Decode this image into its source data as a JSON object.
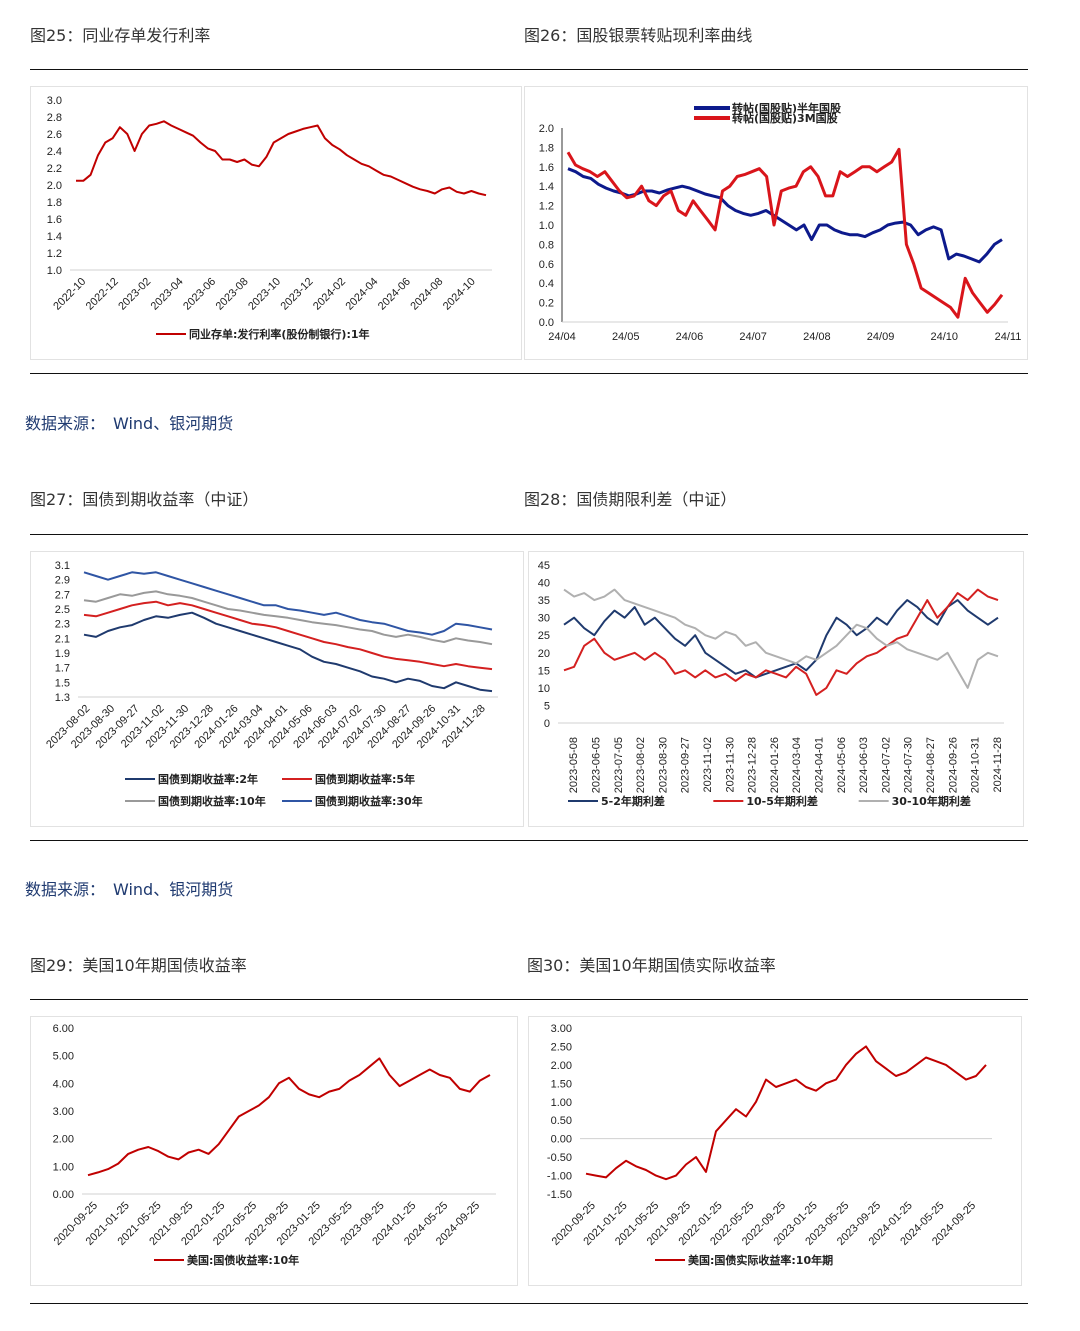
{
  "sections": [
    {
      "left_caption": "图25：同业存单发行利率",
      "right_caption": "图26：国股银票转贴现利率曲线",
      "source": "数据来源：　Wind、银河期货"
    },
    {
      "left_caption": "图27：国债到期收益率（中证）",
      "right_caption": "图28：国债期限利差（中证）",
      "source": "数据来源：　Wind、银河期货"
    },
    {
      "left_caption": "图29：美国10年期国债收益率",
      "right_caption": "图30：美国10年期国债实际收益率"
    }
  ],
  "chart_data": [
    {
      "id": "fig25",
      "type": "line",
      "ylim": [
        1.0,
        3.0
      ],
      "yticks": [
        "3.0",
        "2.8",
        "2.6",
        "2.4",
        "2.2",
        "2.0",
        "1.8",
        "1.6",
        "1.4",
        "1.2",
        "1.0"
      ],
      "xticks": [
        "2022-10",
        "2022-12",
        "2023-02",
        "2023-04",
        "2023-06",
        "2023-08",
        "2023-10",
        "2023-12",
        "2024-02",
        "2024-04",
        "2024-06",
        "2024-08",
        "2024-10"
      ],
      "x_rotated": true,
      "legend_position": "bottom",
      "series": [
        {
          "name": "同业存单:发行利率(股份制银行):1年",
          "color": "#c00000",
          "values": [
            2.05,
            2.05,
            2.12,
            2.35,
            2.5,
            2.55,
            2.68,
            2.6,
            2.4,
            2.6,
            2.7,
            2.72,
            2.75,
            2.7,
            2.66,
            2.62,
            2.58,
            2.5,
            2.43,
            2.4,
            2.3,
            2.3,
            2.27,
            2.3,
            2.24,
            2.22,
            2.33,
            2.5,
            2.55,
            2.6,
            2.63,
            2.66,
            2.68,
            2.7,
            2.55,
            2.47,
            2.42,
            2.35,
            2.3,
            2.25,
            2.22,
            2.17,
            2.12,
            2.1,
            2.06,
            2.02,
            1.98,
            1.95,
            1.93,
            1.9,
            1.95,
            1.97,
            1.92,
            1.9,
            1.93,
            1.9,
            1.88
          ]
        }
      ]
    },
    {
      "id": "fig26",
      "type": "line",
      "ylim": [
        0.0,
        2.0
      ],
      "yticks": [
        "2.0",
        "1.8",
        "1.6",
        "1.4",
        "1.2",
        "1.0",
        "0.8",
        "0.6",
        "0.4",
        "0.2",
        "0.0"
      ],
      "xticks": [
        "24/04",
        "24/05",
        "24/06",
        "24/07",
        "24/08",
        "24/09",
        "24/10",
        "24/11"
      ],
      "x_rotated": false,
      "legend_position": "top-left",
      "series": [
        {
          "name": "转帖(国股贴)半年国股",
          "color": "#0d1a8c",
          "values": [
            1.58,
            1.55,
            1.5,
            1.48,
            1.42,
            1.38,
            1.35,
            1.33,
            1.3,
            1.32,
            1.35,
            1.35,
            1.33,
            1.36,
            1.38,
            1.4,
            1.38,
            1.35,
            1.32,
            1.3,
            1.28,
            1.2,
            1.15,
            1.12,
            1.1,
            1.12,
            1.15,
            1.1,
            1.05,
            1.0,
            0.95,
            1.0,
            0.85,
            1.0,
            1.0,
            0.95,
            0.92,
            0.9,
            0.9,
            0.88,
            0.92,
            0.95,
            1.0,
            1.02,
            1.03,
            1.0,
            0.9,
            0.95,
            0.98,
            0.95,
            0.65,
            0.7,
            0.68,
            0.65,
            0.62,
            0.7,
            0.8,
            0.85
          ]
        },
        {
          "name": "转帖(国股贴)3M国股",
          "color": "#d9151b",
          "values": [
            1.75,
            1.62,
            1.58,
            1.55,
            1.5,
            1.55,
            1.45,
            1.35,
            1.28,
            1.3,
            1.4,
            1.25,
            1.2,
            1.3,
            1.35,
            1.15,
            1.1,
            1.25,
            1.15,
            1.05,
            0.95,
            1.35,
            1.4,
            1.5,
            1.52,
            1.55,
            1.58,
            1.5,
            1.0,
            1.35,
            1.38,
            1.4,
            1.55,
            1.6,
            1.5,
            1.3,
            1.3,
            1.55,
            1.5,
            1.55,
            1.6,
            1.6,
            1.55,
            1.6,
            1.65,
            1.78,
            0.8,
            0.6,
            0.35,
            0.3,
            0.25,
            0.2,
            0.15,
            0.05,
            0.45,
            0.3,
            0.2,
            0.1,
            0.18,
            0.28
          ]
        }
      ]
    },
    {
      "id": "fig27",
      "type": "line",
      "ylim": [
        1.3,
        3.1
      ],
      "yticks": [
        "3.1",
        "2.9",
        "2.7",
        "2.5",
        "2.3",
        "2.1",
        "1.9",
        "1.7",
        "1.5",
        "1.3"
      ],
      "xticks": [
        "2023-08-02",
        "2023-08-30",
        "2023-09-27",
        "2023-11-02",
        "2023-11-30",
        "2023-12-28",
        "2024-01-26",
        "2024-03-04",
        "2024-04-01",
        "2024-05-06",
        "2024-06-03",
        "2024-07-02",
        "2024-07-30",
        "2024-08-27",
        "2024-09-26",
        "2024-10-31",
        "2024-11-28"
      ],
      "x_rotated": true,
      "legend_position": "bottom",
      "series": [
        {
          "name": "国债到期收益率:2年",
          "color": "#1f3a6e",
          "values": [
            2.15,
            2.12,
            2.2,
            2.25,
            2.28,
            2.35,
            2.4,
            2.38,
            2.42,
            2.45,
            2.38,
            2.3,
            2.25,
            2.2,
            2.15,
            2.1,
            2.05,
            2.0,
            1.95,
            1.85,
            1.78,
            1.75,
            1.7,
            1.65,
            1.58,
            1.55,
            1.5,
            1.55,
            1.52,
            1.45,
            1.42,
            1.5,
            1.45,
            1.4,
            1.38
          ]
        },
        {
          "name": "国债到期收益率:5年",
          "color": "#d42020",
          "values": [
            2.42,
            2.4,
            2.45,
            2.5,
            2.55,
            2.58,
            2.6,
            2.55,
            2.58,
            2.55,
            2.5,
            2.45,
            2.4,
            2.35,
            2.3,
            2.28,
            2.25,
            2.2,
            2.15,
            2.1,
            2.05,
            2.02,
            1.98,
            1.95,
            1.9,
            1.85,
            1.82,
            1.8,
            1.78,
            1.75,
            1.72,
            1.75,
            1.72,
            1.7,
            1.68
          ]
        },
        {
          "name": "国债到期收益率:10年",
          "color": "#999999",
          "values": [
            2.62,
            2.6,
            2.65,
            2.7,
            2.68,
            2.72,
            2.74,
            2.7,
            2.68,
            2.65,
            2.6,
            2.55,
            2.5,
            2.48,
            2.45,
            2.42,
            2.4,
            2.38,
            2.35,
            2.32,
            2.3,
            2.28,
            2.25,
            2.22,
            2.2,
            2.15,
            2.12,
            2.15,
            2.12,
            2.08,
            2.05,
            2.1,
            2.07,
            2.05,
            2.02
          ]
        },
        {
          "name": "国债到期收益率:30年",
          "color": "#2f55a4",
          "values": [
            3.0,
            2.95,
            2.9,
            2.95,
            3.0,
            2.98,
            3.0,
            2.95,
            2.9,
            2.85,
            2.8,
            2.75,
            2.7,
            2.65,
            2.6,
            2.55,
            2.55,
            2.5,
            2.48,
            2.45,
            2.42,
            2.45,
            2.4,
            2.35,
            2.32,
            2.3,
            2.25,
            2.2,
            2.18,
            2.15,
            2.2,
            2.3,
            2.28,
            2.25,
            2.22
          ]
        }
      ]
    },
    {
      "id": "fig28",
      "type": "line",
      "ylim": [
        0,
        45
      ],
      "yticks": [
        "45",
        "40",
        "35",
        "30",
        "25",
        "20",
        "15",
        "10",
        "5",
        "0"
      ],
      "xticks": [
        "2023-05-08",
        "2023-06-05",
        "2023-07-05",
        "2023-08-02",
        "2023-08-30",
        "2023-09-27",
        "2023-11-02",
        "2023-11-30",
        "2023-12-28",
        "2024-01-26",
        "2024-03-04",
        "2024-04-01",
        "2024-05-06",
        "2024-06-03",
        "2024-07-02",
        "2024-07-30",
        "2024-08-27",
        "2024-09-26",
        "2024-10-31",
        "2024-11-28"
      ],
      "x_rotated": true,
      "legend_position": "bottom",
      "series": [
        {
          "name": "5-2年期利差",
          "color": "#1f3a6e",
          "values": [
            28,
            30,
            27,
            25,
            29,
            32,
            30,
            33,
            28,
            30,
            27,
            24,
            22,
            25,
            20,
            18,
            16,
            14,
            15,
            13,
            14,
            15,
            16,
            17,
            15,
            18,
            25,
            30,
            28,
            25,
            27,
            30,
            28,
            32,
            35,
            33,
            30,
            28,
            33,
            35,
            32,
            30,
            28,
            30
          ]
        },
        {
          "name": "10-5年期利差",
          "color": "#d42020",
          "values": [
            15,
            16,
            22,
            24,
            20,
            18,
            19,
            20,
            18,
            20,
            18,
            14,
            15,
            13,
            15,
            13,
            14,
            12,
            14,
            13,
            15,
            14,
            13,
            16,
            14,
            8,
            10,
            15,
            14,
            17,
            19,
            20,
            22,
            24,
            25,
            30,
            35,
            30,
            33,
            37,
            35,
            38,
            36,
            35
          ]
        },
        {
          "name": "30-10年期利差",
          "color": "#b0b0b0",
          "values": [
            38,
            36,
            37,
            35,
            36,
            38,
            35,
            34,
            33,
            32,
            31,
            30,
            28,
            27,
            25,
            24,
            26,
            25,
            22,
            23,
            20,
            19,
            18,
            17,
            19,
            18,
            20,
            22,
            25,
            28,
            27,
            24,
            22,
            23,
            21,
            20,
            19,
            18,
            20,
            15,
            10,
            18,
            20,
            19
          ]
        }
      ]
    },
    {
      "id": "fig29",
      "type": "line",
      "ylim": [
        0.0,
        6.0
      ],
      "yticks": [
        "6.00",
        "5.00",
        "4.00",
        "3.00",
        "2.00",
        "1.00",
        "0.00"
      ],
      "xticks": [
        "2020-09-25",
        "2021-01-25",
        "2021-05-25",
        "2021-09-25",
        "2022-01-25",
        "2022-05-25",
        "2022-09-25",
        "2023-01-25",
        "2023-05-25",
        "2023-09-25",
        "2024-01-25",
        "2024-05-25",
        "2024-09-25"
      ],
      "x_rotated": true,
      "legend_position": "bottom",
      "series": [
        {
          "name": "美国:国债收益率:10年",
          "color": "#c00000",
          "values": [
            0.68,
            0.78,
            0.9,
            1.1,
            1.45,
            1.6,
            1.7,
            1.55,
            1.35,
            1.25,
            1.5,
            1.6,
            1.45,
            1.8,
            2.3,
            2.8,
            3.0,
            3.2,
            3.5,
            4.0,
            4.2,
            3.8,
            3.6,
            3.5,
            3.7,
            3.8,
            4.1,
            4.3,
            4.6,
            4.9,
            4.3,
            3.9,
            4.1,
            4.3,
            4.5,
            4.3,
            4.2,
            3.8,
            3.7,
            4.1,
            4.3
          ]
        }
      ]
    },
    {
      "id": "fig30",
      "type": "line",
      "ylim": [
        -1.5,
        3.0
      ],
      "yticks": [
        "3.00",
        "2.50",
        "2.00",
        "1.50",
        "1.00",
        "0.50",
        "0.00",
        "-0.50",
        "-1.00",
        "-1.50"
      ],
      "xticks": [
        "2020-09-25",
        "2021-01-25",
        "2021-05-25",
        "2021-09-25",
        "2022-01-25",
        "2022-05-25",
        "2022-09-25",
        "2023-01-25",
        "2023-05-25",
        "2023-09-25",
        "2024-01-25",
        "2024-05-25",
        "2024-09-25"
      ],
      "x_rotated": true,
      "legend_position": "bottom",
      "series": [
        {
          "name": "美国:国债实际收益率:10年期",
          "color": "#c00000",
          "values": [
            -0.95,
            -1.0,
            -1.05,
            -0.8,
            -0.6,
            -0.75,
            -0.85,
            -1.0,
            -1.1,
            -1.0,
            -0.7,
            -0.5,
            -0.9,
            0.2,
            0.5,
            0.8,
            0.6,
            1.0,
            1.6,
            1.4,
            1.5,
            1.6,
            1.4,
            1.3,
            1.5,
            1.6,
            2.0,
            2.3,
            2.5,
            2.1,
            1.9,
            1.7,
            1.8,
            2.0,
            2.2,
            2.1,
            2.0,
            1.8,
            1.6,
            1.7,
            2.0
          ]
        }
      ]
    }
  ]
}
